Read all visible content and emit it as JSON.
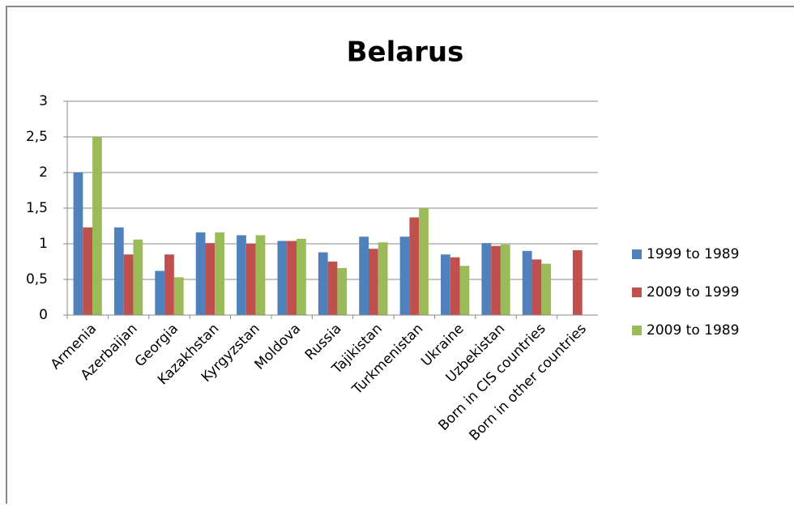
{
  "chart_data": {
    "type": "bar",
    "title": "Belarus",
    "categories": [
      "Armenia",
      "Azerbaijan",
      "Georgia",
      "Kazakhstan",
      "Kyrgyzstan",
      "Moldova",
      "Russia",
      "Tajikistan",
      "Turkmenistan",
      "Ukraine",
      "Uzbekistan",
      "Born in CIS countries",
      "Born in other countries"
    ],
    "series": [
      {
        "name": "1999 to 1989",
        "color": "#4f81bd",
        "values": [
          2.0,
          1.23,
          0.62,
          1.16,
          1.12,
          1.04,
          0.88,
          1.1,
          1.1,
          0.85,
          1.01,
          0.9,
          null
        ]
      },
      {
        "name": "2009 to 1999",
        "color": "#c0504d",
        "values": [
          1.23,
          0.85,
          0.85,
          1.01,
          1.0,
          1.04,
          0.75,
          0.93,
          1.37,
          0.81,
          0.97,
          0.78,
          0.91
        ]
      },
      {
        "name": "2009 to 1989",
        "color": "#9bbb59",
        "values": [
          2.5,
          1.06,
          0.53,
          1.16,
          1.12,
          1.07,
          0.66,
          1.02,
          1.5,
          0.69,
          0.99,
          0.72,
          null
        ]
      }
    ],
    "ylim": [
      0,
      3
    ],
    "yticks": [
      0,
      {
        "value": 0.5,
        "label": "0,5"
      },
      1,
      {
        "value": 1.5,
        "label": "1,5"
      },
      2,
      {
        "value": 2.5,
        "label": "2,5"
      },
      3
    ],
    "grid": true,
    "legend": "right"
  }
}
